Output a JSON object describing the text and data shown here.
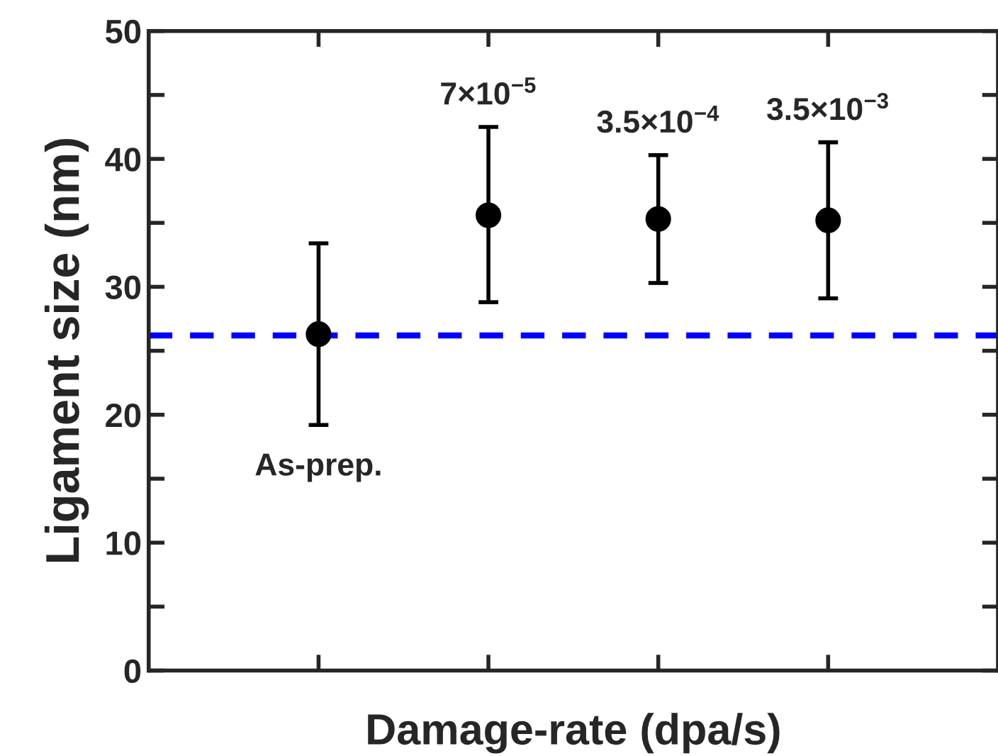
{
  "chart_data": {
    "type": "scatter",
    "xlabel": "Damage-rate (dpa/s)",
    "ylabel": "Ligament size (nm)",
    "categories": [
      null,
      null,
      null,
      null
    ],
    "series": [
      {
        "color": "#000000",
        "values": [
          26.3,
          35.6,
          35.3,
          35.2
        ],
        "errors": [
          [
            19.2,
            33.4
          ],
          [
            28.8,
            42.5
          ],
          [
            30.3,
            40.3
          ],
          [
            29.1,
            41.3
          ]
        ]
      }
    ],
    "ylim": [
      0,
      50
    ],
    "yticks": [
      0,
      {
        "value": 5,
        "label": null
      },
      10,
      {
        "value": 15,
        "label": null
      },
      20,
      {
        "value": 25,
        "label": null
      },
      30,
      {
        "value": 35,
        "label": null
      },
      40,
      {
        "value": 45,
        "label": null
      },
      50
    ],
    "ref_lines": [
      {
        "axis": "y",
        "value": 26.2,
        "color": "#0000ff",
        "line_style": "dashed"
      }
    ],
    "annotations": [
      "As-prep.",
      "7×10$^{−5}$",
      "3.5×10$^{−4}$",
      "3.5×10$^{−3}$"
    ],
    "marker": "circle",
    "grid": false,
    "legend": false
  }
}
